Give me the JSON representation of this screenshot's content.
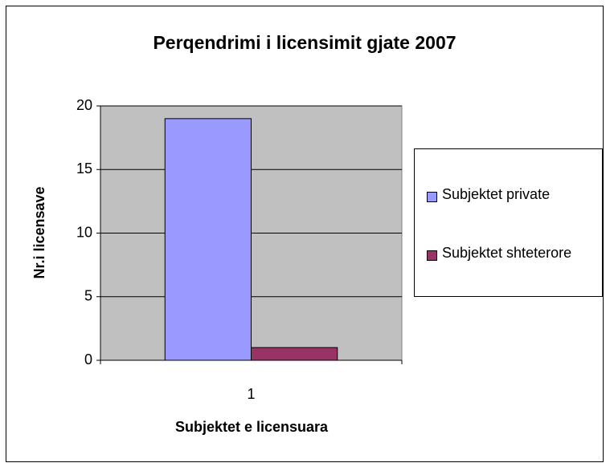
{
  "chart_data": {
    "type": "bar",
    "title": "Perqendrimi i licensimit gjate 2007",
    "x_label": "Subjektet e licensuara",
    "y_label": "Nr.i licensave",
    "categories": [
      "1"
    ],
    "series": [
      {
        "name": "Subjektet private",
        "color": "#9999ff",
        "values": [
          19
        ]
      },
      {
        "name": "Subjektet shteterore",
        "color": "#993366",
        "values": [
          1
        ]
      }
    ],
    "ylim": [
      0,
      20
    ],
    "yticks": [
      0,
      5,
      10,
      15,
      20
    ],
    "grid": true,
    "legend": "right",
    "plot_background": "#c0c0c0"
  }
}
